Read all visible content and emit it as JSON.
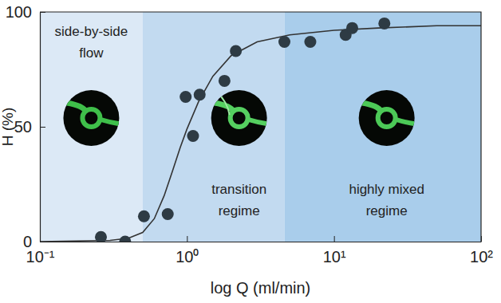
{
  "chart_data": {
    "type": "scatter",
    "x_label": "log Q (ml/min)",
    "y_label": "H (%)",
    "log": "x",
    "xlim": [
      0.1,
      100
    ],
    "ylim": [
      0,
      100
    ],
    "xticks": [
      {
        "value": 0.1,
        "label": "10⁻¹"
      },
      {
        "value": 1,
        "label": "10⁰"
      },
      {
        "value": 10,
        "label": "10¹"
      },
      {
        "value": 100,
        "label": "10²"
      }
    ],
    "yticks": [
      0,
      50,
      100
    ],
    "regions": [
      {
        "label": [
          "side-by-side",
          "flow"
        ],
        "x0": 0.1,
        "x1": 0.5,
        "color": "#dce9f6"
      },
      {
        "label": [
          "transition",
          "regime"
        ],
        "x0": 0.5,
        "x1": 4.6,
        "color": "#c2daf0"
      },
      {
        "label": [
          "highly mixed",
          "regime"
        ],
        "x0": 4.6,
        "x1": 100,
        "color": "#a9cdeb"
      }
    ],
    "series": [
      {
        "type": "scatter",
        "color": "#2e3b44",
        "marker": "circle",
        "x": [
          0.26,
          0.38,
          0.51,
          0.74,
          0.98,
          1.1,
          1.22,
          1.8,
          2.15,
          4.6,
          6.9,
          12,
          13.3,
          22
        ],
        "values": [
          2,
          0,
          11,
          12,
          63,
          46,
          64,
          70,
          83,
          87,
          87,
          90,
          93,
          95
        ]
      },
      {
        "type": "line",
        "color": "#333333",
        "line_style": "solid",
        "x": [
          0.1,
          0.3,
          0.4,
          0.5,
          0.6,
          0.7,
          0.8,
          0.9,
          1,
          1.2,
          1.5,
          2,
          3,
          5,
          10,
          20,
          50,
          100
        ],
        "values": [
          0,
          0.5,
          1.5,
          4,
          10,
          20,
          31,
          41,
          49,
          61,
          72,
          81,
          87,
          90,
          92,
          93,
          94,
          94
        ]
      }
    ]
  }
}
